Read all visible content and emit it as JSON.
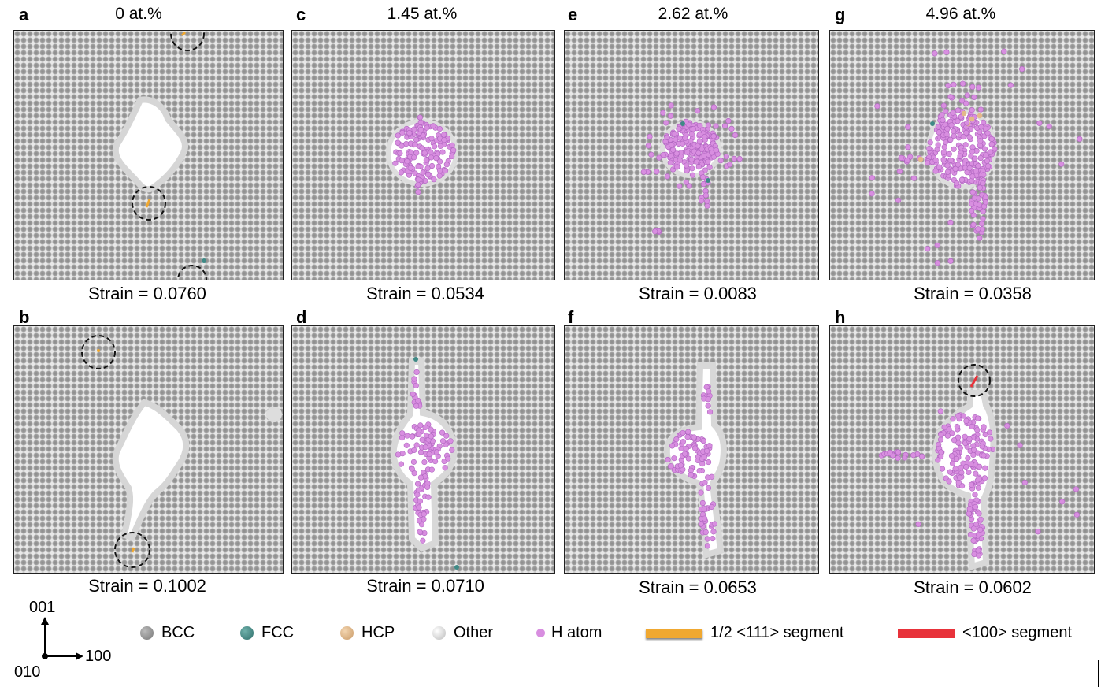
{
  "panels": [
    {
      "letter": "a",
      "concentration": "0 at.%",
      "strain": "Strain = 0.0760"
    },
    {
      "letter": "b",
      "strain": "Strain = 0.1002"
    },
    {
      "letter": "c",
      "concentration": "1.45 at.%",
      "strain": "Strain = 0.0534"
    },
    {
      "letter": "d",
      "strain": "Strain = 0.0710"
    },
    {
      "letter": "e",
      "concentration": "2.62 at.%",
      "strain": "Strain = 0.0083"
    },
    {
      "letter": "f",
      "strain": "Strain = 0.0653"
    },
    {
      "letter": "g",
      "concentration": "4.96 at.%",
      "strain": "Strain = 0.0358"
    },
    {
      "letter": "h",
      "strain": "Strain = 0.0602"
    }
  ],
  "axes": {
    "up": "001",
    "right": "100",
    "out": "010"
  },
  "legend": [
    {
      "label": "BCC",
      "color": "#8a8a8a"
    },
    {
      "label": "FCC",
      "color": "#3f8a86"
    },
    {
      "label": "HCP",
      "color": "#e3b98a"
    },
    {
      "label": "Other",
      "color": "#e2e2e2"
    },
    {
      "label": "H atom",
      "color": "#d88ee0"
    },
    {
      "label": "1/2 <111> segment",
      "color": "#f0a830"
    },
    {
      "label": "<100> segment",
      "color": "#e8323a"
    }
  ]
}
